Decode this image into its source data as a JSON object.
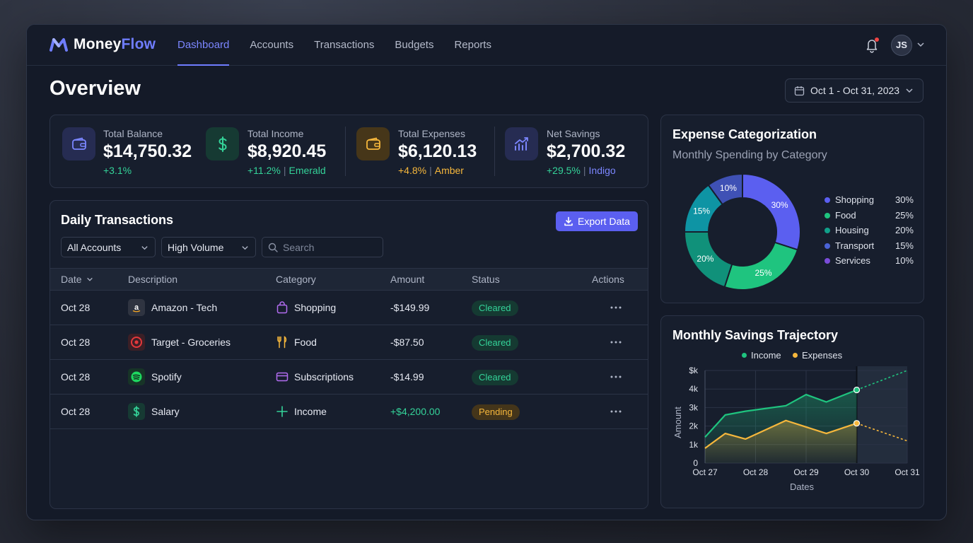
{
  "app": {
    "logo_part1": "Money",
    "logo_part2": "Flow",
    "nav": [
      "Dashboard",
      "Accounts",
      "Transactions",
      "Budgets",
      "Reports"
    ],
    "active_nav": "Dashboard",
    "user_initials": "JS"
  },
  "page": {
    "title": "Overview",
    "date_range": "Oct 1 - Oct 31, 2023"
  },
  "stats": [
    {
      "label": "Total Balance",
      "value": "$14,750.32",
      "change": "+3.1%",
      "note": "",
      "icon": "wallet-icon",
      "color": "#6f7dff"
    },
    {
      "label": "Total Income",
      "value": "$8,920.45",
      "change": "+11.2%",
      "note": "Emerald",
      "icon": "dollar-icon",
      "color": "#34d399"
    },
    {
      "label": "Total Expenses",
      "value": "$6,120.13",
      "change": "+4.8%",
      "note": "Amber",
      "icon": "wallet-icon",
      "color": "#f6b73c"
    },
    {
      "label": "Net Savings",
      "value": "$2,700.32",
      "change": "+29.5%",
      "note": "Indigo",
      "icon": "trend-chart-icon",
      "color": "#6f7dff"
    }
  ],
  "transactions": {
    "title": "Daily Transactions",
    "export_label": "Export Data",
    "filter_accounts": "All Accounts",
    "filter_volume": "High Volume",
    "search_placeholder": "Search",
    "columns": [
      "Date",
      "Description",
      "Category",
      "Amount",
      "Status",
      "Actions"
    ],
    "rows": [
      {
        "date": "Oct 28",
        "description": "Amazon - Tech",
        "desc_icon": "amazon-icon",
        "category": "Shopping",
        "cat_icon": "shopping-bag-icon",
        "amount": "-$149.99",
        "status": "Cleared"
      },
      {
        "date": "Oct 28",
        "description": "Target - Groceries",
        "desc_icon": "target-icon",
        "category": "Food",
        "cat_icon": "fork-knife-icon",
        "amount": "-$87.50",
        "status": "Cleared"
      },
      {
        "date": "Oct 28",
        "description": "Spotify",
        "desc_icon": "spotify-icon",
        "category": "Subscriptions",
        "cat_icon": "card-icon",
        "amount": "-$14.99",
        "status": "Cleared"
      },
      {
        "date": "Oct 28",
        "description": "Salary",
        "desc_icon": "dollar-icon",
        "category": "Income",
        "cat_icon": "plus-icon",
        "amount": "+$4,200.00",
        "status": "Pending"
      }
    ]
  },
  "expense_card": {
    "title": "Expense Categorization",
    "subtitle": "Monthly Spending by Category"
  },
  "savings_card": {
    "title": "Monthly Savings Trajectory"
  },
  "chart_data": [
    {
      "type": "pie",
      "title": "Expense Categorization",
      "subtitle": "Monthly Spending by Category",
      "donut": true,
      "legend_position": "right",
      "categories": [
        "Shopping",
        "Food",
        "Housing",
        "Transport",
        "Services"
      ],
      "values": [
        30,
        25,
        20,
        15,
        10
      ],
      "labels": [
        "30%",
        "25%",
        "20%",
        "15%",
        "10%"
      ],
      "colors": [
        "#5b5ff0",
        "#1fc47f",
        "#10917a",
        "#0e94a4",
        "#3f51b5"
      ],
      "legend_colors": [
        "#5b5ff0",
        "#1fc47f",
        "#10a08a",
        "#4a63d6",
        "#7a4cd9"
      ]
    },
    {
      "type": "line",
      "title": "Monthly Savings Trajectory",
      "xlabel": "Dates",
      "ylabel": "Amount",
      "x": [
        "Oct 27",
        "Oct 28",
        "Oct 29",
        "Oct 30",
        "Oct 31"
      ],
      "yticks": [
        "0",
        "1k",
        "2k",
        "3k",
        "4k",
        "$k"
      ],
      "ylim": [
        0,
        5000
      ],
      "legend_position": "top",
      "series": [
        {
          "name": "Income",
          "color": "#1fc47f",
          "actual": [
            [
              0,
              1400
            ],
            [
              0.4,
              2600
            ],
            [
              0.8,
              2800
            ],
            [
              1.6,
              3100
            ],
            [
              2.0,
              3700
            ],
            [
              2.4,
              3300
            ],
            [
              3.0,
              3950
            ]
          ],
          "projected": [
            [
              3.0,
              3950
            ],
            [
              4.0,
              5000
            ]
          ]
        },
        {
          "name": "Expenses",
          "color": "#f6b73c",
          "actual": [
            [
              0,
              800
            ],
            [
              0.4,
              1600
            ],
            [
              0.8,
              1300
            ],
            [
              1.6,
              2300
            ],
            [
              2.4,
              1600
            ],
            [
              3.0,
              2150
            ]
          ],
          "projected": [
            [
              3.0,
              2150
            ],
            [
              4.0,
              1200
            ]
          ]
        }
      ],
      "forecast_start": "Oct 30"
    }
  ]
}
